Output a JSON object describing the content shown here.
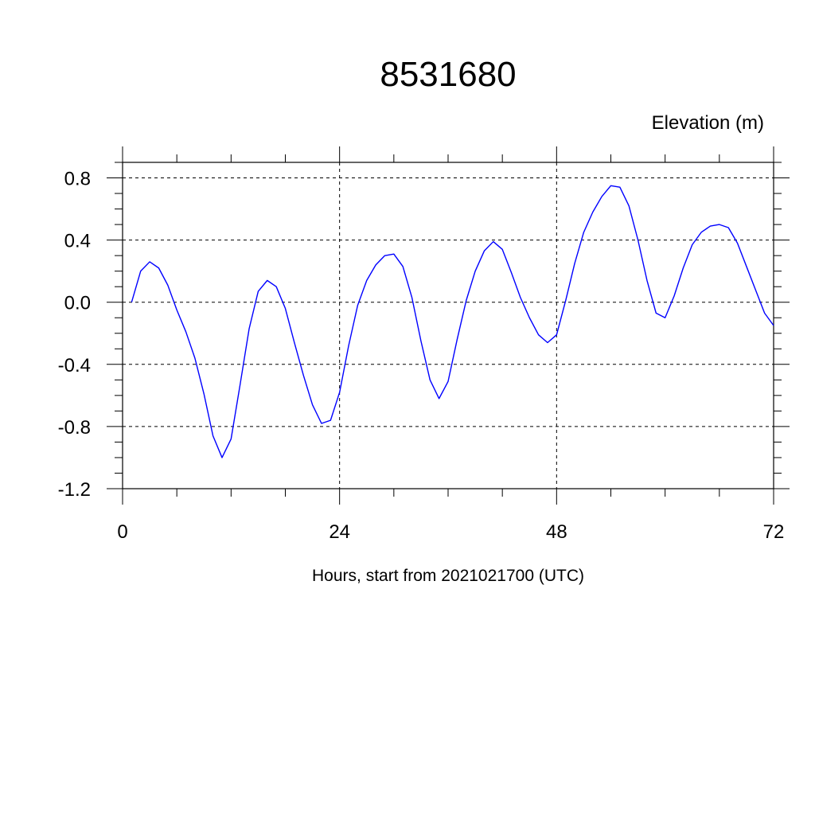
{
  "chart_data": {
    "type": "line",
    "title": "8531680",
    "units_label": "Elevation (m)",
    "xlabel": "Hours, start from 2021021700 (UTC)",
    "ylabel": "",
    "xlim": [
      0,
      72
    ],
    "ylim": [
      -1.2,
      0.9
    ],
    "xticks": [
      0,
      24,
      48,
      72
    ],
    "xtick_labels": [
      "0",
      "24",
      "48",
      "72"
    ],
    "yticks": [
      -1.2,
      -0.8,
      -0.4,
      0.0,
      0.4,
      0.8
    ],
    "ytick_labels": [
      "-1.2",
      "-0.8",
      "-0.4",
      "0.0",
      "0.4",
      "0.8"
    ],
    "grid": "dashed",
    "line_color": "#0000ff",
    "series": [
      {
        "x": [
          1,
          2,
          3,
          4,
          5,
          6,
          7,
          8,
          9,
          10,
          11,
          12,
          13,
          14,
          15,
          16,
          17,
          18,
          19,
          20,
          21,
          22,
          23,
          24,
          25,
          26,
          27,
          28,
          29,
          30,
          31,
          32,
          33,
          34,
          35,
          36,
          37,
          38,
          39,
          40,
          41,
          42,
          43,
          44,
          45,
          46,
          47,
          48,
          49,
          50,
          51,
          52,
          53,
          54,
          55,
          56,
          57,
          58,
          59,
          60,
          61,
          62,
          63,
          64,
          65,
          66,
          67,
          68,
          69,
          70,
          71,
          72
        ],
        "values": [
          0.0,
          0.2,
          0.26,
          0.22,
          0.11,
          -0.05,
          -0.19,
          -0.36,
          -0.59,
          -0.86,
          -1.0,
          -0.88,
          -0.53,
          -0.17,
          0.07,
          0.14,
          0.1,
          -0.04,
          -0.26,
          -0.47,
          -0.66,
          -0.78,
          -0.76,
          -0.58,
          -0.28,
          -0.02,
          0.14,
          0.24,
          0.3,
          0.31,
          0.23,
          0.03,
          -0.25,
          -0.5,
          -0.62,
          -0.51,
          -0.24,
          0.01,
          0.2,
          0.33,
          0.39,
          0.34,
          0.19,
          0.03,
          -0.1,
          -0.21,
          -0.26,
          -0.21,
          0.01,
          0.25,
          0.45,
          0.58,
          0.68,
          0.75,
          0.74,
          0.62,
          0.4,
          0.14,
          -0.07,
          -0.1,
          0.04,
          0.22,
          0.37,
          0.45,
          0.49,
          0.5,
          0.48,
          0.38,
          0.23,
          0.08,
          -0.07,
          -0.15
        ]
      }
    ]
  }
}
